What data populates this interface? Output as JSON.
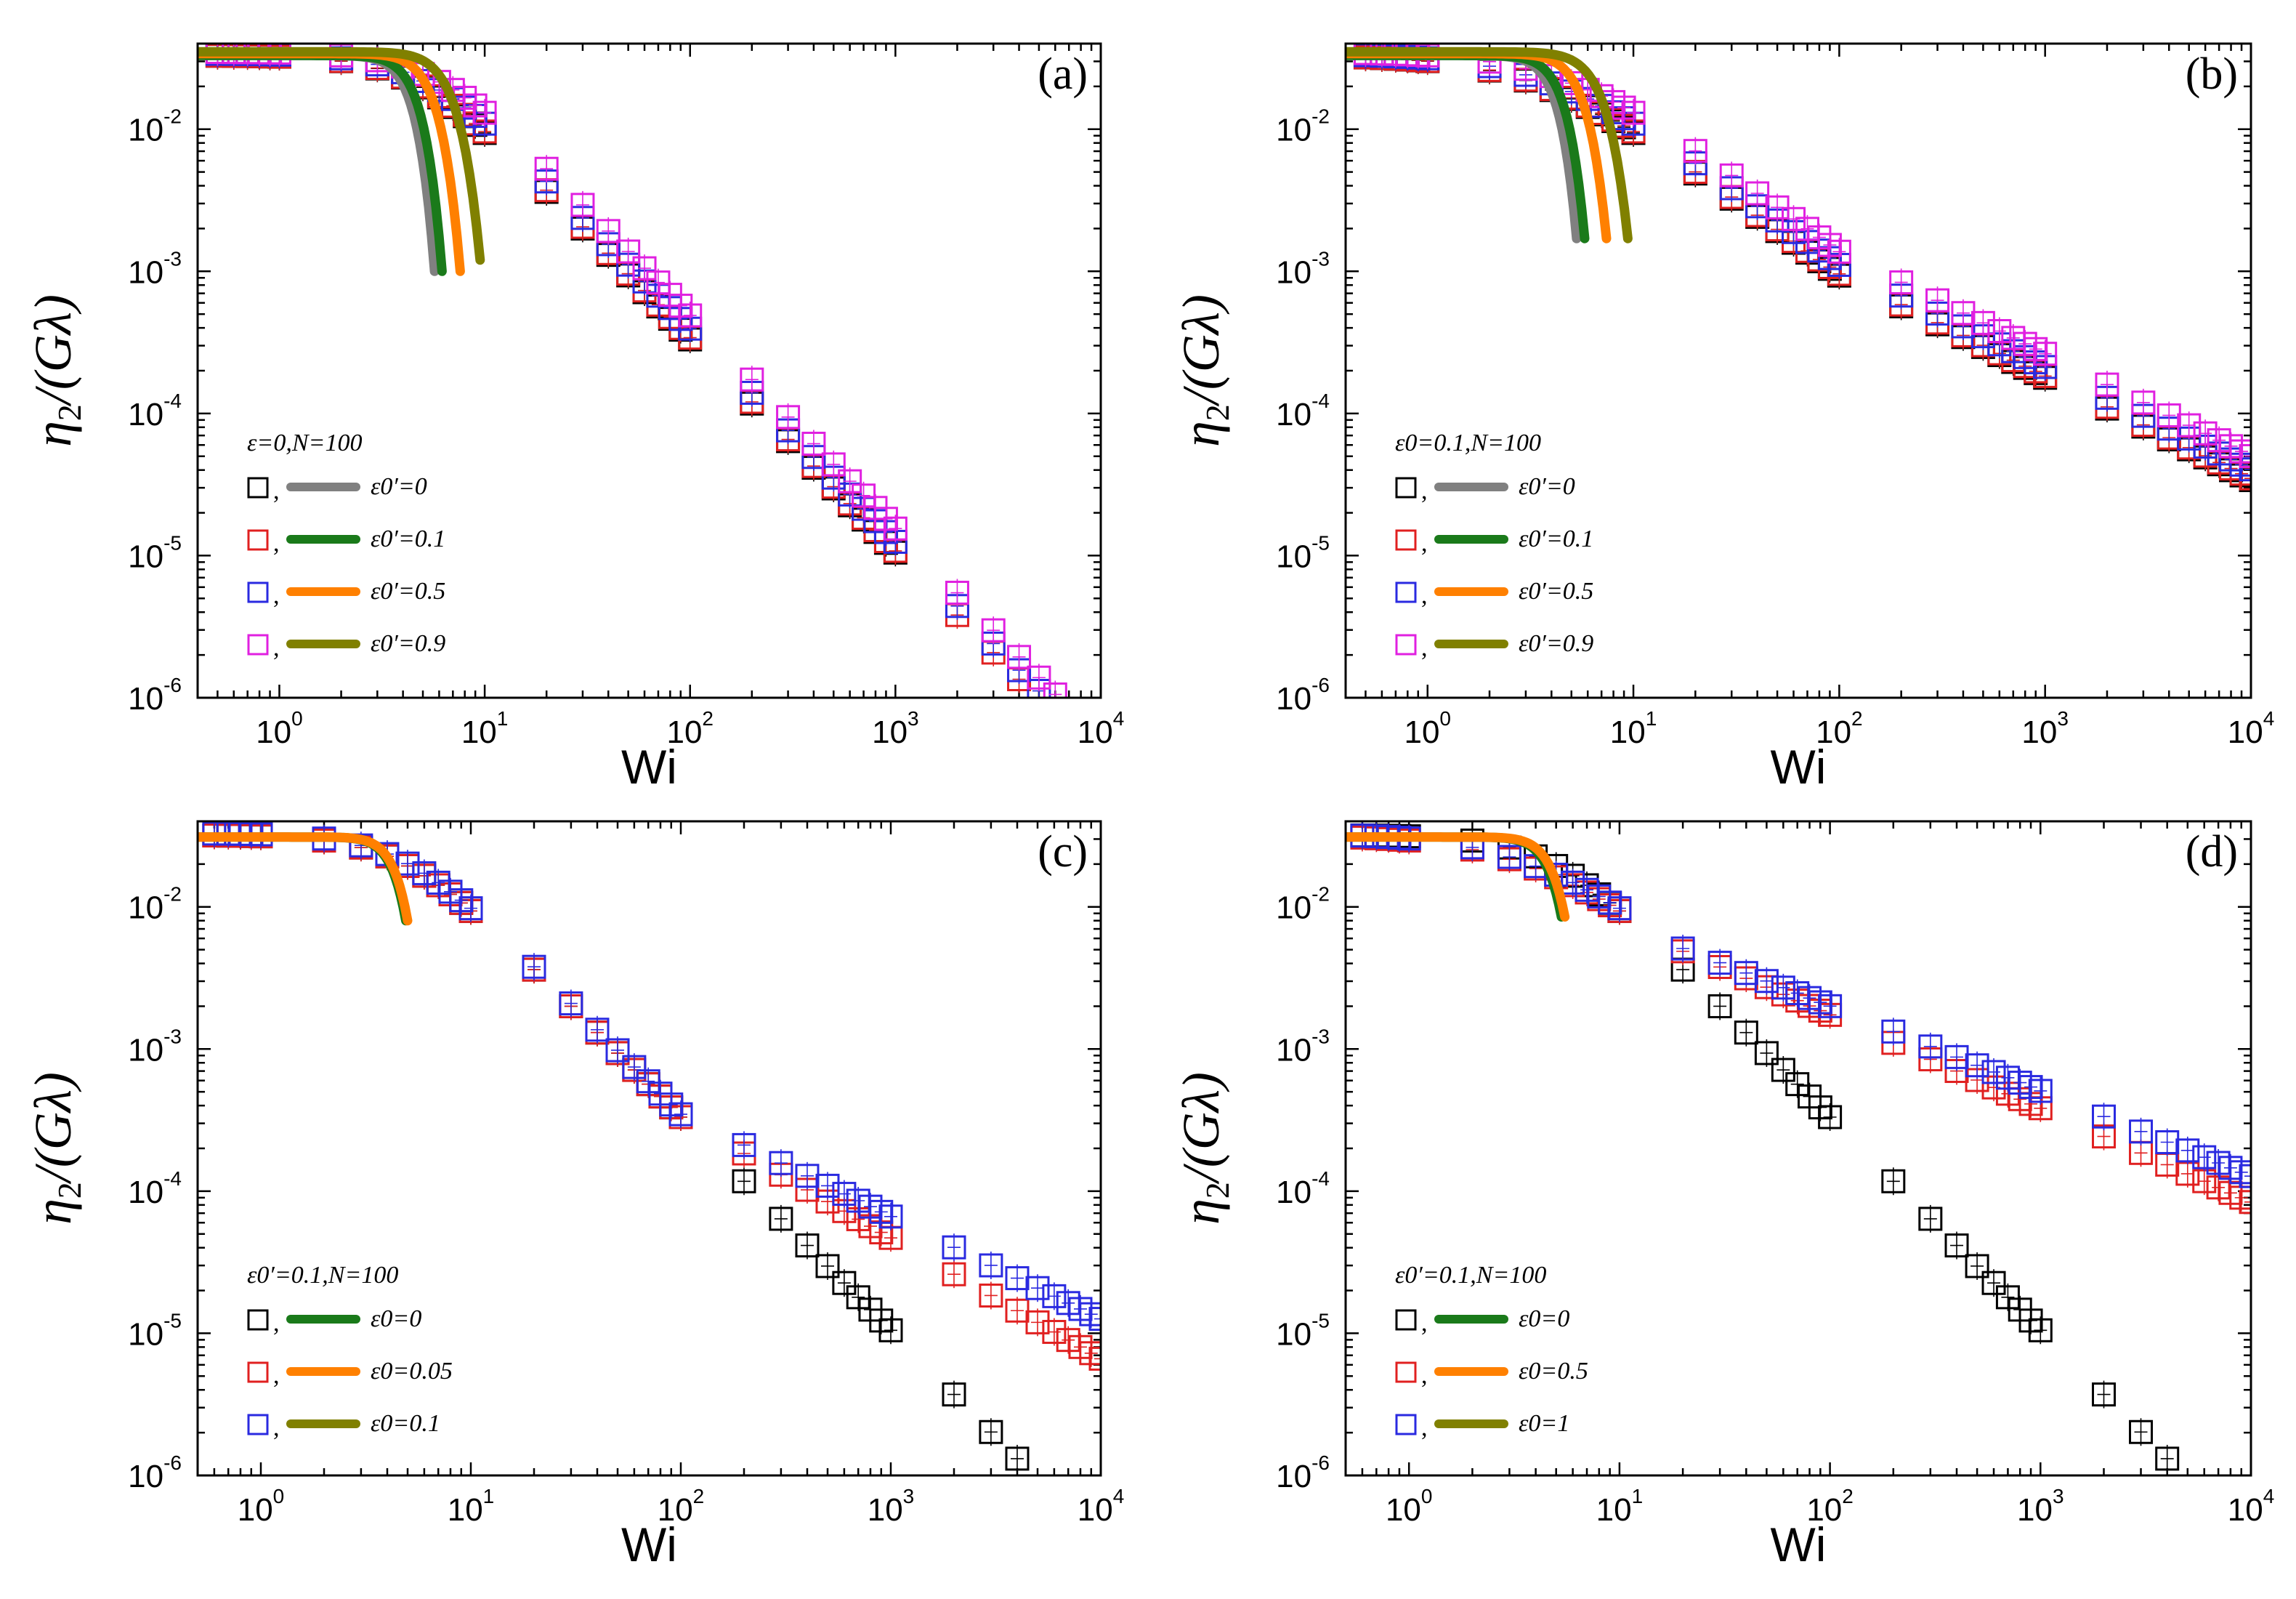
{
  "chart_data": [
    {
      "type": "scatter",
      "panel_label": "(a)",
      "xlabel": "Wi",
      "ylabel": "η2/(Gλ)",
      "xscale": "log",
      "yscale": "log",
      "xlim": [
        0.4,
        10000
      ],
      "ylim": [
        1e-06,
        0.04
      ],
      "x_ticks": [
        1,
        10,
        100,
        1000,
        10000
      ],
      "y_ticks": [
        1e-06,
        1e-05,
        0.0001,
        0.001,
        0.01
      ],
      "legend": {
        "title": "ε=0,N=100",
        "placement": "left-middle",
        "entries": [
          {
            "label": "ε0′=0",
            "color": "#000000",
            "curve_color": "#808080"
          },
          {
            "label": "ε0′=0.1",
            "color": "#e02020",
            "curve_color": "#1a7a1a"
          },
          {
            "label": "ε0′=0.5",
            "color": "#2a2ae0",
            "curve_color": "#ff8000"
          },
          {
            "label": "ε0′=0.9",
            "color": "#e020e0",
            "curve_color": "#808000"
          }
        ]
      },
      "x": [
        0.5,
        0.6,
        0.7,
        0.8,
        0.9,
        1,
        2,
        3,
        4,
        5,
        6,
        7,
        8,
        9,
        10,
        20,
        30,
        40,
        50,
        60,
        70,
        80,
        90,
        100,
        200,
        300,
        400,
        500,
        600,
        700,
        800,
        900,
        1000,
        2000,
        3000,
        4000,
        5000,
        6000,
        7000,
        8000
      ],
      "series": [
        {
          "name": "ε0′=0",
          "color": "#000000",
          "marker": "square",
          "x_range": [
            0.5,
            1000
          ],
          "slope": -1.5,
          "anchor": [
            10,
            0.0105
          ],
          "plateau": 0.033,
          "alpha": 1.5
        },
        {
          "name": "ε0′=0.1",
          "color": "#e02020",
          "marker": "square",
          "x_range": [
            0.5,
            8000
          ],
          "slope": -1.5,
          "anchor": [
            10,
            0.0108
          ],
          "plateau": 0.033,
          "alpha": 1.5
        },
        {
          "name": "ε0′=0.5",
          "color": "#2a2ae0",
          "marker": "square",
          "x_range": [
            0.5,
            8000
          ],
          "slope": -1.5,
          "anchor": [
            10,
            0.0125
          ],
          "plateau": 0.034,
          "alpha": 1.5
        },
        {
          "name": "ε0′=0.9",
          "color": "#e020e0",
          "marker": "square",
          "x_range": [
            0.5,
            8000
          ],
          "slope": -1.5,
          "anchor": [
            10,
            0.0155
          ],
          "plateau": 0.035,
          "alpha": 1.5
        }
      ],
      "curves": [
        {
          "name": "ε0′=0",
          "color": "#808080",
          "plateau": 0.033,
          "end": [
            5.7,
            0.001
          ]
        },
        {
          "name": "ε0′=0.1",
          "color": "#1a7a1a",
          "plateau": 0.033,
          "end": [
            6.2,
            0.001
          ]
        },
        {
          "name": "ε0′=0.5",
          "color": "#ff8000",
          "plateau": 0.034,
          "end": [
            7.6,
            0.001
          ]
        },
        {
          "name": "ε0′=0.9",
          "color": "#808000",
          "plateau": 0.035,
          "end": [
            9.5,
            0.0012
          ]
        }
      ]
    },
    {
      "type": "scatter",
      "panel_label": "(b)",
      "xlabel": "Wi",
      "ylabel": "η2/(Gλ)",
      "xscale": "log",
      "yscale": "log",
      "xlim": [
        0.4,
        10000
      ],
      "ylim": [
        1e-06,
        0.04
      ],
      "x_ticks": [
        1,
        10,
        100,
        1000,
        10000
      ],
      "y_ticks": [
        1e-06,
        1e-05,
        0.0001,
        0.001,
        0.01
      ],
      "legend": {
        "title": "ε0=0.1,N=100",
        "placement": "left-middle",
        "entries": [
          {
            "label": "ε0′=0",
            "color": "#000000",
            "curve_color": "#808080"
          },
          {
            "label": "ε0′=0.1",
            "color": "#e02020",
            "curve_color": "#1a7a1a"
          },
          {
            "label": "ε0′=0.5",
            "color": "#2a2ae0",
            "curve_color": "#ff8000"
          },
          {
            "label": "ε0′=0.9",
            "color": "#e020e0",
            "curve_color": "#808000"
          }
        ]
      },
      "x": [
        0.5,
        0.6,
        0.7,
        0.8,
        0.9,
        1,
        2,
        3,
        4,
        5,
        6,
        7,
        8,
        9,
        10,
        20,
        30,
        40,
        50,
        60,
        70,
        80,
        90,
        100,
        200,
        300,
        400,
        500,
        600,
        700,
        800,
        900,
        1000,
        2000,
        3000,
        4000,
        5000,
        6000,
        7000,
        8000,
        9000,
        10000
      ],
      "series": [
        {
          "name": "ε0′=0",
          "color": "#000000",
          "marker": "square",
          "x_range": [
            0.5,
            10000
          ],
          "slope": -1.05,
          "anchor": [
            10,
            0.0105
          ],
          "plateau": 0.033,
          "alpha": 1.5,
          "break_x": 100,
          "slope2": -0.72
        },
        {
          "name": "ε0′=0.1",
          "color": "#e02020",
          "marker": "square",
          "x_range": [
            0.5,
            10000
          ],
          "slope": -1.05,
          "anchor": [
            10,
            0.0108
          ],
          "plateau": 0.033,
          "alpha": 1.5,
          "break_x": 100,
          "slope2": -0.72
        },
        {
          "name": "ε0′=0.5",
          "color": "#2a2ae0",
          "marker": "square",
          "x_range": [
            0.5,
            10000
          ],
          "slope": -1.05,
          "anchor": [
            10,
            0.0125
          ],
          "plateau": 0.034,
          "alpha": 1.5,
          "break_x": 100,
          "slope2": -0.72
        },
        {
          "name": "ε0′=0.9",
          "color": "#e020e0",
          "marker": "square",
          "x_range": [
            0.5,
            10000
          ],
          "slope": -1.05,
          "anchor": [
            10,
            0.0155
          ],
          "plateau": 0.035,
          "alpha": 1.5,
          "break_x": 100,
          "slope2": -0.72
        }
      ],
      "curves": [
        {
          "name": "ε0′=0",
          "color": "#808080",
          "plateau": 0.033,
          "end": [
            5.3,
            0.0017
          ]
        },
        {
          "name": "ε0′=0.1",
          "color": "#1a7a1a",
          "plateau": 0.033,
          "end": [
            5.8,
            0.0017
          ]
        },
        {
          "name": "ε0′=0.5",
          "color": "#ff8000",
          "plateau": 0.034,
          "end": [
            7.4,
            0.0017
          ]
        },
        {
          "name": "ε0′=0.9",
          "color": "#808000",
          "plateau": 0.035,
          "end": [
            9.4,
            0.0017
          ]
        }
      ]
    },
    {
      "type": "scatter",
      "panel_label": "(c)",
      "xlabel": "Wi",
      "ylabel": "η2/(Gλ)",
      "xscale": "log",
      "yscale": "log",
      "xlim": [
        0.5,
        10000
      ],
      "ylim": [
        1e-06,
        0.04
      ],
      "x_ticks": [
        1,
        10,
        100,
        1000,
        10000
      ],
      "y_ticks": [
        1e-06,
        1e-05,
        0.0001,
        0.001,
        0.01
      ],
      "legend": {
        "title": "ε0′=0.1,N=100",
        "placement": "bottom-left",
        "entries": [
          {
            "label": "ε0=0",
            "color": "#000000",
            "curve_color": "#1a7a1a"
          },
          {
            "label": "ε0=0.05",
            "color": "#e02020",
            "curve_color": "#ff8000"
          },
          {
            "label": "ε0=0.1",
            "color": "#2a2ae0",
            "curve_color": "#808000"
          }
        ]
      },
      "x": [
        0.6,
        0.7,
        0.8,
        0.9,
        1,
        2,
        3,
        4,
        5,
        6,
        7,
        8,
        9,
        10,
        20,
        30,
        40,
        50,
        60,
        70,
        80,
        90,
        100,
        200,
        300,
        400,
        500,
        600,
        700,
        800,
        900,
        1000,
        2000,
        3000,
        4000,
        5000,
        6000,
        7000,
        8000,
        9000,
        10000
      ],
      "series": [
        {
          "name": "ε0=0",
          "color": "#000000",
          "marker": "square",
          "x_range": [
            0.6,
            10000
          ],
          "slope": -1.5,
          "anchor": [
            10,
            0.0105
          ],
          "plateau": 0.032,
          "alpha": 1.5
        },
        {
          "name": "ε0=0.05",
          "color": "#e02020",
          "marker": "square",
          "x_range": [
            0.6,
            10000
          ],
          "slope": -1.5,
          "anchor": [
            10,
            0.0105
          ],
          "plateau": 0.032,
          "alpha": 1.5,
          "break_x": 100,
          "slope2": -0.85
        },
        {
          "name": "ε0=0.1",
          "color": "#2a2ae0",
          "marker": "square",
          "x_range": [
            0.6,
            10000
          ],
          "slope": -1.5,
          "anchor": [
            10,
            0.011
          ],
          "plateau": 0.033,
          "alpha": 1.5,
          "break_x": 100,
          "slope2": -0.72
        }
      ],
      "curves": [
        {
          "name": "ε0=0",
          "color": "#1a7a1a",
          "plateau": 0.031,
          "end": [
            4.9,
            0.008
          ]
        },
        {
          "name": "ε0=0.05",
          "color": "#ff8000",
          "plateau": 0.031,
          "end": [
            5.0,
            0.008
          ]
        }
      ]
    },
    {
      "type": "scatter",
      "panel_label": "(d)",
      "xlabel": "Wi",
      "ylabel": "η2/(Gλ)",
      "xscale": "log",
      "yscale": "log",
      "xlim": [
        0.5,
        10000
      ],
      "ylim": [
        1e-06,
        0.04
      ],
      "x_ticks": [
        1,
        10,
        100,
        1000,
        10000
      ],
      "y_ticks": [
        1e-06,
        1e-05,
        0.0001,
        0.001,
        0.01
      ],
      "legend": {
        "title": "ε0′=0.1,N=100",
        "placement": "bottom-left",
        "entries": [
          {
            "label": "ε0=0",
            "color": "#000000",
            "curve_color": "#1a7a1a"
          },
          {
            "label": "ε0=0.5",
            "color": "#e02020",
            "curve_color": "#ff8000"
          },
          {
            "label": "ε0=1",
            "color": "#2a2ae0",
            "curve_color": "#808000"
          }
        ]
      },
      "x": [
        0.6,
        0.7,
        0.8,
        0.9,
        1,
        2,
        3,
        4,
        5,
        6,
        7,
        8,
        9,
        10,
        20,
        30,
        40,
        50,
        60,
        70,
        80,
        90,
        100,
        200,
        300,
        400,
        500,
        600,
        700,
        800,
        900,
        1000,
        2000,
        3000,
        4000,
        5000,
        6000,
        7000,
        8000,
        9000,
        10000
      ],
      "series": [
        {
          "name": "ε0=0",
          "color": "#000000",
          "marker": "square",
          "x_range": [
            0.6,
            10000
          ],
          "slope": -1.5,
          "anchor": [
            10,
            0.0105
          ],
          "plateau": 0.032,
          "alpha": 1.5
        },
        {
          "name": "ε0=0.5",
          "color": "#e02020",
          "marker": "square",
          "x_range": [
            0.6,
            10000
          ],
          "slope": -1.05,
          "anchor": [
            10,
            0.0105
          ],
          "plateau": 0.032,
          "alpha": 1.5,
          "break_x": 20,
          "slope2": -0.66
        },
        {
          "name": "ε0=1",
          "color": "#2a2ae0",
          "marker": "square",
          "x_range": [
            0.6,
            10000
          ],
          "slope": -1.05,
          "anchor": [
            10,
            0.011
          ],
          "plateau": 0.033,
          "alpha": 1.5,
          "break_x": 20,
          "slope2": -0.6
        }
      ],
      "curves": [
        {
          "name": "ε0=0",
          "color": "#1a7a1a",
          "plateau": 0.031,
          "end": [
            5.3,
            0.0085
          ]
        },
        {
          "name": "ε0=0.5",
          "color": "#ff8000",
          "plateau": 0.031,
          "end": [
            5.5,
            0.0085
          ]
        }
      ]
    }
  ]
}
